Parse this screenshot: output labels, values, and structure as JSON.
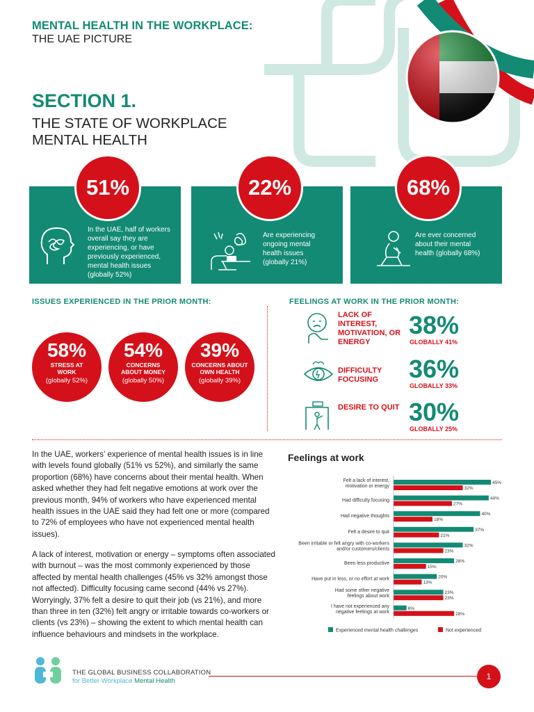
{
  "header": {
    "title": "MENTAL HEALTH IN THE WORKPLACE:",
    "subtitle": "THE UAE PICTURE"
  },
  "section": {
    "number": "SECTION 1.",
    "title": "THE STATE OF WORKPLACE MENTAL HEALTH"
  },
  "stats": [
    {
      "value": "51%",
      "text": "In the UAE, half of workers overall say they are experiencing, or have previously experienced, mental health issues (globally 52%)",
      "icon": "head-scribble-icon"
    },
    {
      "value": "22%",
      "text": "Are experiencing ongoing mental health issues (globally 21%)",
      "icon": "stressed-worker-icon"
    },
    {
      "value": "68%",
      "text": "Are ever concerned about their mental health (globally 68%)",
      "icon": "sad-person-icon"
    }
  ],
  "issues": {
    "heading": "ISSUES EXPERIENCED IN THE PRIOR MONTH:",
    "items": [
      {
        "value": "58%",
        "label": "STRESS AT WORK",
        "global": "(globally 52%)"
      },
      {
        "value": "54%",
        "label": "CONCERNS ABOUT MONEY",
        "global": "(globally 50%)"
      },
      {
        "value": "39%",
        "label": "CONCERNS ABOUT OWN HEALTH",
        "global": "(globally 39%)"
      }
    ]
  },
  "feelings": {
    "heading": "FEELINGS AT WORK IN THE PRIOR MONTH:",
    "items": [
      {
        "label": "LACK OF INTEREST, MOTIVATION, OR ENERGY",
        "value": "38%",
        "global": "GLOBALLY 41%",
        "icon": "tired-person-icon"
      },
      {
        "label": "DIFFICULTY FOCUSING",
        "value": "36%",
        "global": "GLOBALLY 33%",
        "icon": "eye-icon"
      },
      {
        "label": "DESIRE TO QUIT",
        "value": "30%",
        "global": "GLOBALLY 25%",
        "icon": "exit-door-icon"
      }
    ]
  },
  "body": {
    "para1": "In the UAE, workers’ experience of mental health issues is in line with levels found globally (51% vs 52%), and similarly the same proportion (68%) have concerns about their mental health. When asked whether they had felt negative emotions at work over the previous month, 94% of workers who have experienced mental health issues in the UAE said they had felt one or more (compared to 72% of employees who have not experienced mental health issues).",
    "para2": "A lack of interest, motivation or energy – symptoms often associated with burnout – was the most commonly experienced by those affected by mental health challenges (45% vs 32% amongst those not affected). Difficulty focusing came second (44% vs 27%). Worryingly, 37% felt a desire to quit their job (vs 21%), and more than three in ten (32%) felt angry or irritable towards co-workers or clients (vs 23%) – showing the extent to which mental health can influence behaviours and mindsets in the workplace."
  },
  "chart_title": "Feelings at work",
  "chart_data": {
    "type": "bar",
    "orientation": "horizontal",
    "title": "Feelings at work",
    "categories": [
      "Felt a lack of interest, motivation or energy",
      "Had difficulty focusing",
      "Had negative thoughts",
      "Felt a desire to quit",
      "Been irritable or felt angry with co-workers and/or customers/clients",
      "Been less productive",
      "Have put in less, or no effort at work",
      "Had some other negative feelings about work",
      "I have not experienced any negative feelings at work"
    ],
    "series": [
      {
        "name": "Experienced mental health challenges",
        "color": "#138a74",
        "values": [
          45,
          44,
          40,
          37,
          32,
          28,
          20,
          23,
          6
        ]
      },
      {
        "name": "Not experienced",
        "color": "#d4111a",
        "values": [
          32,
          27,
          18,
          21,
          23,
          15,
          13,
          23,
          28
        ]
      }
    ],
    "legend": "bottom",
    "grid": false
  },
  "footer": {
    "org_line1": "THE GLOBAL BUSINESS COLLABORATION",
    "org_line2_a": "for Better Workplace",
    "org_line2_b": "Mental Health",
    "page": "1"
  },
  "colors": {
    "teal": "#138a74",
    "red": "#d4111a",
    "light_teal": "#cfe8e2"
  }
}
